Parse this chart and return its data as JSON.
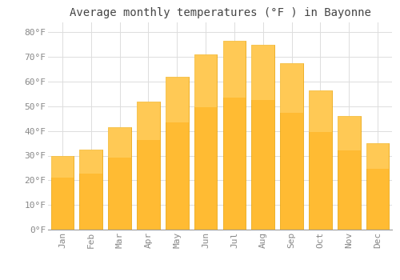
{
  "title": "Average monthly temperatures (°F ) in Bayonne",
  "months": [
    "Jan",
    "Feb",
    "Mar",
    "Apr",
    "May",
    "Jun",
    "Jul",
    "Aug",
    "Sep",
    "Oct",
    "Nov",
    "Dec"
  ],
  "values": [
    30,
    32.5,
    41.5,
    52,
    62,
    71,
    76.5,
    75,
    67.5,
    56.5,
    46,
    35
  ],
  "bar_color_top": "#FFC93C",
  "bar_color_bottom": "#FFB020",
  "bar_color": "#FFBB33",
  "bar_edge_color": "#E8A000",
  "background_color": "#FFFFFF",
  "grid_color": "#DDDDDD",
  "text_color": "#888888",
  "ylim": [
    0,
    84
  ],
  "yticks": [
    0,
    10,
    20,
    30,
    40,
    50,
    60,
    70,
    80
  ],
  "ytick_labels": [
    "0°F",
    "10°F",
    "20°F",
    "30°F",
    "40°F",
    "50°F",
    "60°F",
    "70°F",
    "80°F"
  ],
  "title_fontsize": 10,
  "tick_fontsize": 8,
  "font_family": "monospace"
}
